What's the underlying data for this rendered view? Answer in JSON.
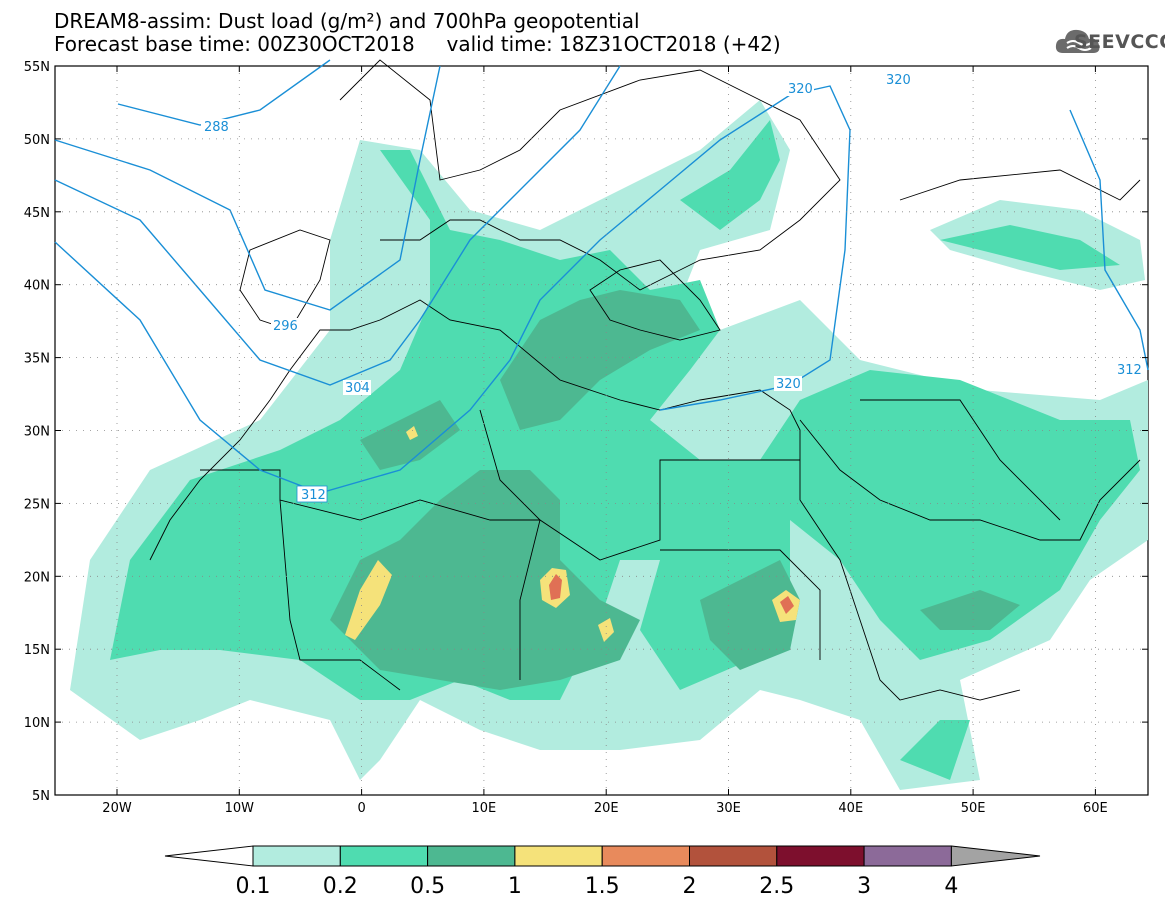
{
  "header": {
    "title_line1": "DREAM8-assim: Dust load (g/m²) and 700hPa geopotential",
    "title_line2": "Forecast base time: 00Z30OCT2018     valid time: 18Z31OCT2018 (+42)"
  },
  "logo": {
    "text": "SEEVCCC",
    "icon": "cloud-icon"
  },
  "axes": {
    "lat_labels": [
      "55N",
      "50N",
      "45N",
      "40N",
      "35N",
      "30N",
      "25N",
      "20N",
      "15N",
      "10N",
      "5N"
    ],
    "lon_labels": [
      "20W",
      "10W",
      "0",
      "10E",
      "20E",
      "30E",
      "40E",
      "50E",
      "60E"
    ]
  },
  "contours": {
    "labels": [
      "288",
      "296",
      "304",
      "312",
      "320",
      "320",
      "320",
      "312"
    ],
    "color": "#1a8fd6"
  },
  "colorbar": {
    "ticks": [
      "0.1",
      "0.2",
      "0.5",
      "1",
      "1.5",
      "2",
      "2.5",
      "3",
      "4"
    ],
    "colors": [
      "#ffffff",
      "#b2ecdf",
      "#4fdcb0",
      "#4db891",
      "#f5e27a",
      "#e88a5c",
      "#b2523c",
      "#7d0f2d",
      "#8c6a99",
      "#a3a3a3"
    ]
  },
  "dust_colors": {
    "low": "#b2ecdf",
    "mid": "#4fdcb0",
    "high": "#4db891",
    "peak": "#f5e27a",
    "max": "#e07055"
  }
}
